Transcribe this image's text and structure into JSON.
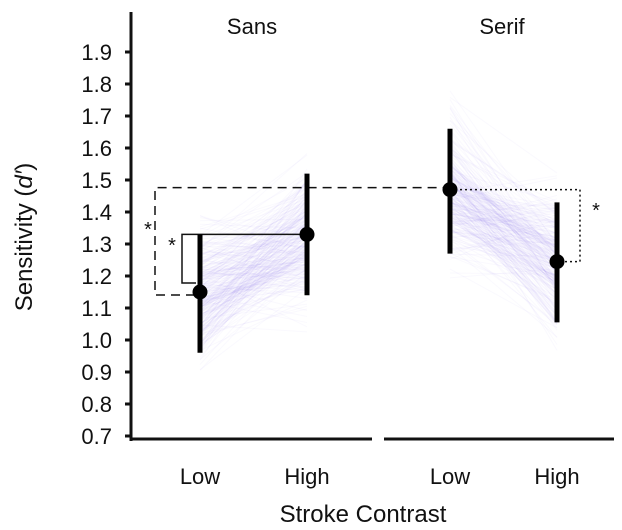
{
  "chart_data": {
    "type": "scatter",
    "title": "",
    "xlabel": "Stroke Contrast",
    "ylabel_prefix": "Sensitivity (",
    "ylabel_symbol": "d′",
    "ylabel_suffix": ")",
    "ylim": [
      0.65,
      1.95
    ],
    "yticks": [
      0.7,
      0.8,
      0.9,
      1.0,
      1.1,
      1.2,
      1.3,
      1.4,
      1.5,
      1.6,
      1.7,
      1.8,
      1.9
    ],
    "ytick_labels": [
      "0.7",
      "0.8",
      "0.9",
      "1.0",
      "1.1",
      "1.2",
      "1.3",
      "1.4",
      "1.5",
      "1.6",
      "1.7",
      "1.8",
      "1.9"
    ],
    "grid": false,
    "legend": "none",
    "band_color": "#6a5cf0",
    "panels": [
      {
        "name": "Sans",
        "categories": [
          "Low",
          "High"
        ],
        "means": [
          1.15,
          1.33
        ],
        "ci_low": [
          0.96,
          1.14
        ],
        "ci_high": [
          1.33,
          1.52
        ]
      },
      {
        "name": "Serif",
        "categories": [
          "Low",
          "High"
        ],
        "means": [
          1.47,
          1.245
        ],
        "ci_low": [
          1.27,
          1.055
        ],
        "ci_high": [
          1.66,
          1.43
        ]
      }
    ],
    "annotations": [
      "*",
      "*",
      "*"
    ]
  }
}
